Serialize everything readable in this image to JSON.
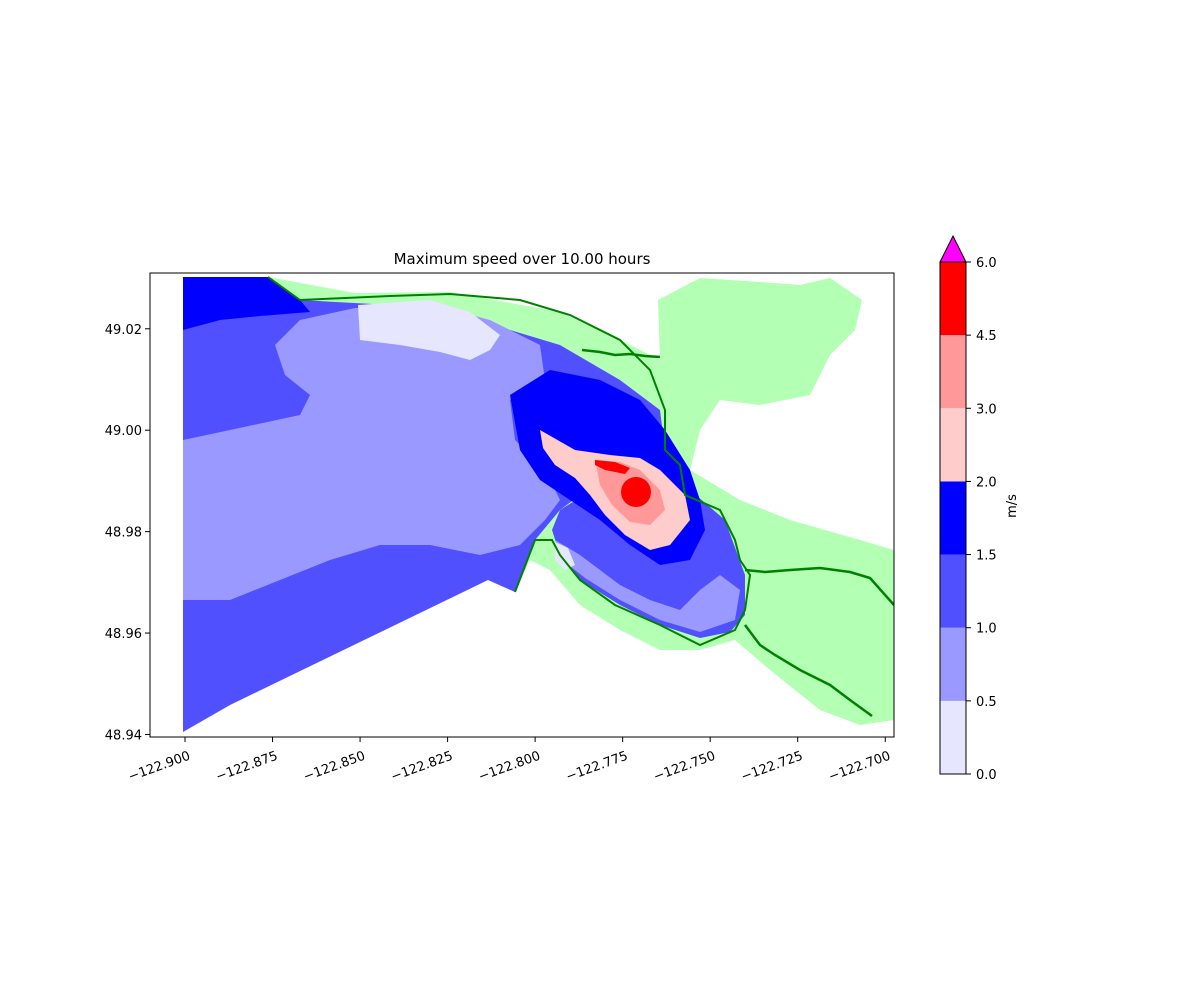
{
  "chart_data": {
    "type": "heatmap",
    "title": "Maximum speed over 10.00 hours",
    "x_ticks": [
      "−122.900",
      "−122.875",
      "−122.850",
      "−122.825",
      "−122.800",
      "−122.775",
      "−122.750",
      "−122.725",
      "−122.700"
    ],
    "x_tick_values": [
      -122.9,
      -122.875,
      -122.85,
      -122.825,
      -122.8,
      -122.775,
      -122.75,
      -122.725,
      -122.7
    ],
    "y_ticks": [
      "48.94",
      "48.96",
      "48.98",
      "49.00",
      "49.02"
    ],
    "y_tick_values": [
      48.94,
      48.96,
      48.98,
      49.0,
      49.02
    ],
    "xlim": [
      -122.91,
      -122.6975
    ],
    "ylim": [
      48.9395,
      49.031
    ],
    "colorbar": {
      "label": "m/s",
      "levels": [
        0.0,
        0.5,
        1.0,
        1.5,
        2.0,
        3.0,
        4.5,
        6.0
      ],
      "tick_labels": [
        "0.0",
        "0.5",
        "1.0",
        "1.5",
        "2.0",
        "3.0",
        "4.5",
        "6.0"
      ],
      "colors": [
        "#e6e6ff",
        "#9999ff",
        "#5050ff",
        "#0000ff",
        "#ffcccc",
        "#ff9999",
        "#ff0000"
      ],
      "extend_color": "#ff00ff",
      "extend": "max"
    },
    "land_color": "#b3ffb3",
    "shoreline_color": "#008000"
  }
}
